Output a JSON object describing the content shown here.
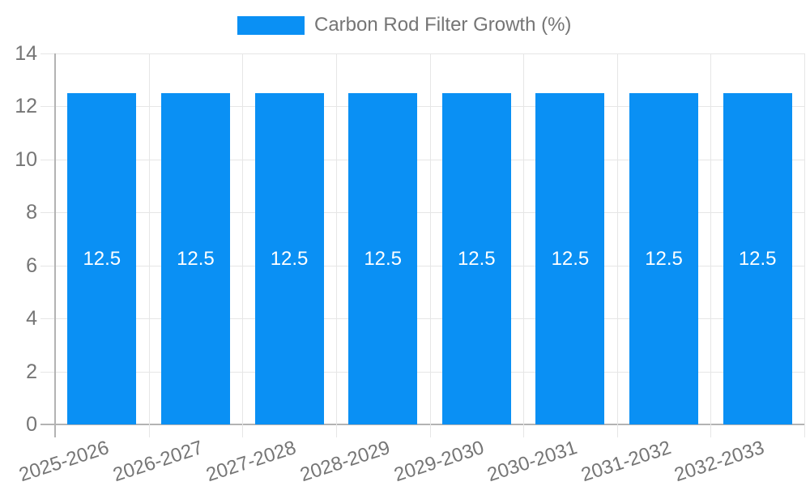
{
  "legend": {
    "label": "Carbon Rod Filter Growth (%)",
    "position": "top"
  },
  "colors": {
    "bar": "#0A90F4",
    "grid": "#E6E6E6",
    "axis": "#B3B3B3",
    "tick_text": "#757575",
    "value_label_text": "#FFFFFF",
    "background": "#FFFFFF"
  },
  "chart_data": {
    "type": "bar",
    "title": "Carbon Rod Filter Growth (%)",
    "categories": [
      "2025-2026",
      "2026-2027",
      "2027-2028",
      "2028-2029",
      "2029-2030",
      "2030-2031",
      "2031-2032",
      "2032-2033"
    ],
    "series": [
      {
        "name": "Carbon Rod Filter Growth (%)",
        "values": [
          12.5,
          12.5,
          12.5,
          12.5,
          12.5,
          12.5,
          12.5,
          12.5
        ]
      }
    ],
    "bar_labels": [
      "12.5",
      "12.5",
      "12.5",
      "12.5",
      "12.5",
      "12.5",
      "12.5",
      "12.5"
    ],
    "xlabel": "",
    "ylabel": "",
    "ylim": [
      0,
      14
    ],
    "yticks": [
      0,
      2,
      4,
      6,
      8,
      10,
      12,
      14
    ],
    "grid": true,
    "x_label_rotation_deg": -18,
    "legend_position": "top"
  }
}
